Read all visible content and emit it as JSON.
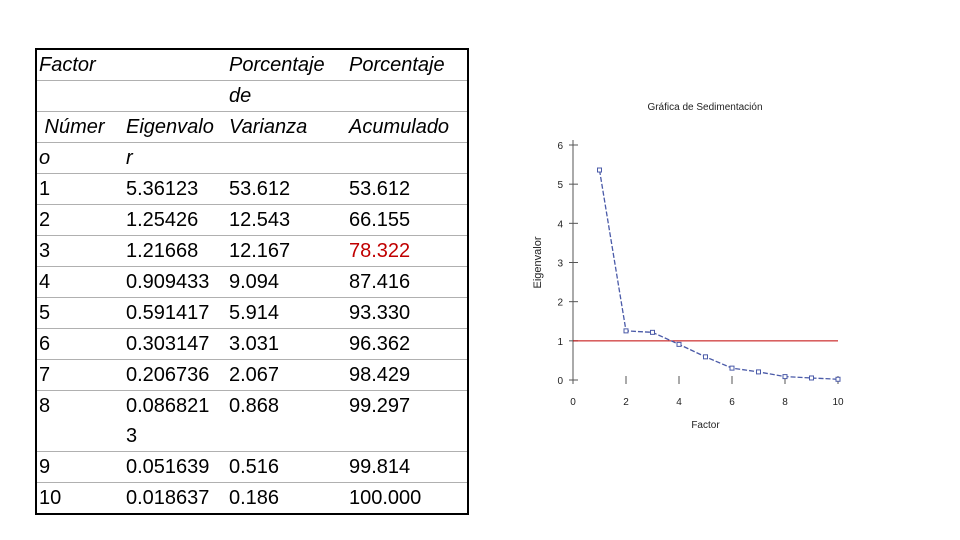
{
  "table": {
    "headers": {
      "factor_1": "Factor",
      "numero_1": " Númer",
      "numero_2": "o",
      "eig_1": "Eigenvalo",
      "eig_2": "r",
      "pv_1": "Porcentaje",
      "pv_2": "de",
      "pv_3": "Varianza",
      "pa_1": "Porcentaje",
      "pa_2": "Acumulado"
    },
    "rows": [
      {
        "n": "1",
        "eig": "5.36123",
        "pv": "53.612",
        "pa": "53.612"
      },
      {
        "n": "2",
        "eig": "1.25426",
        "pv": "12.543",
        "pa": "66.155"
      },
      {
        "n": "3",
        "eig": "1.21668",
        "pv": "12.167",
        "pa": "78.322"
      },
      {
        "n": "4",
        "eig": "0.909433",
        "pv": "9.094",
        "pa": "87.416"
      },
      {
        "n": "5",
        "eig": "0.591417",
        "pv": "5.914",
        "pa": "93.330"
      },
      {
        "n": "6",
        "eig": "0.303147",
        "pv": "3.031",
        "pa": "96.362"
      },
      {
        "n": "7",
        "eig": "0.206736",
        "pv": "2.067",
        "pa": "98.429"
      },
      {
        "n": "8",
        "eig": "0.086821",
        "eig_2": "3",
        "pv": "0.868",
        "pa": "99.297"
      },
      {
        "n": "9",
        "eig": "0.051639",
        "pv": "0.516",
        "pa": "99.814"
      },
      {
        "n": "10",
        "eig": "0.018637",
        "pv": "0.186",
        "pa": "100.000"
      }
    ],
    "highlight_color": "#c00000"
  },
  "chart_data": {
    "type": "line",
    "title": "Gráfica de Sedimentación",
    "xlabel": "Factor",
    "ylabel": "Eigenvalor",
    "xlim": [
      0,
      10
    ],
    "ylim": [
      0,
      6
    ],
    "xticks": [
      "0",
      "2",
      "4",
      "6",
      "8",
      "10"
    ],
    "yticks": [
      "0",
      "1",
      "2",
      "3",
      "4",
      "5",
      "6"
    ],
    "x": [
      1,
      2,
      3,
      4,
      5,
      6,
      7,
      8,
      9,
      10
    ],
    "values": [
      5.36123,
      1.25426,
      1.21668,
      0.909433,
      0.591417,
      0.303147,
      0.206736,
      0.0868213,
      0.051639,
      0.018637
    ],
    "reference_line": 1,
    "series_color": "#4a5aa8",
    "reference_color": "#c00000"
  }
}
